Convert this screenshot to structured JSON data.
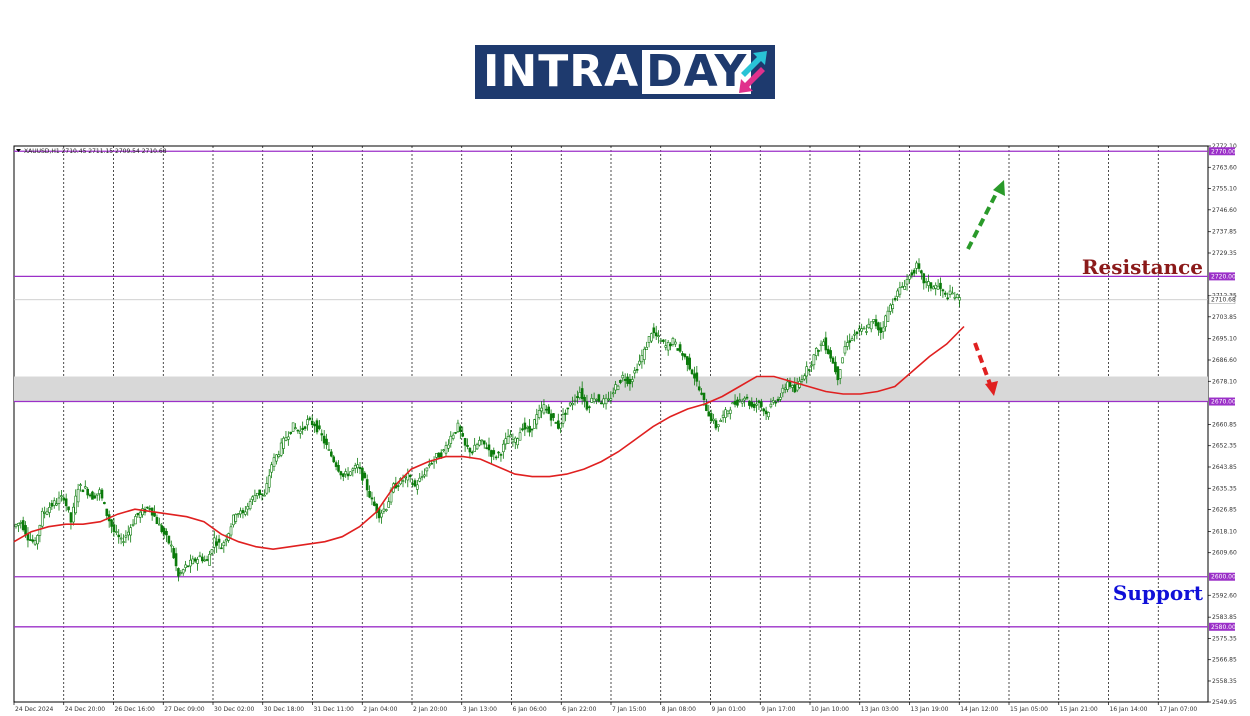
{
  "logo": {
    "text_main": "INTRA",
    "text_box": "DAY",
    "icon": "up-down-arrows-icon",
    "colors": {
      "background": "#1e3a6e",
      "arrow_up": "#29c4d6",
      "arrow_down": "#e0318c"
    }
  },
  "chart_data": {
    "type": "candlestick",
    "symbol_info": "XAUUSD,H1  2710.45 2711.15 2709.54 2710.68",
    "ylim": [
      2549.95,
      2772.1
    ],
    "y_ticks": [
      2772.1,
      2763.6,
      2755.1,
      2746.6,
      2737.85,
      2729.35,
      2712.35,
      2703.85,
      2695.1,
      2686.6,
      2678.1,
      2660.85,
      2652.35,
      2643.85,
      2635.35,
      2626.85,
      2618.1,
      2609.6,
      2592.6,
      2583.85,
      2575.35,
      2566.85,
      2558.35,
      2549.95
    ],
    "x_ticks": [
      "24 Dec 2024",
      "24 Dec 20:00",
      "26 Dec 16:00",
      "27 Dec 09:00",
      "30 Dec 02:00",
      "30 Dec 18:00",
      "31 Dec 11:00",
      "2 Jan 04:00",
      "2 Jan 20:00",
      "3 Jan 13:00",
      "6 Jan 06:00",
      "6 Jan 22:00",
      "7 Jan 15:00",
      "8 Jan 08:00",
      "9 Jan 01:00",
      "9 Jan 17:00",
      "10 Jan 10:00",
      "13 Jan 03:00",
      "13 Jan 19:00",
      "14 Jan 12:00",
      "15 Jan 05:00",
      "15 Jan 21:00",
      "16 Jan 14:00",
      "17 Jan 07:00"
    ],
    "levels": [
      {
        "value": 2770.0,
        "label": "2770.00"
      },
      {
        "value": 2720.0,
        "label": "2720.00"
      },
      {
        "value": 2670.0,
        "label": "2670.00"
      },
      {
        "value": 2600.0,
        "label": "2600.00"
      },
      {
        "value": 2580.0,
        "label": "2580.00"
      }
    ],
    "current_price": {
      "value": 2710.68,
      "label": "2710.68"
    },
    "zone": {
      "from": 2670.0,
      "to": 2680.0
    },
    "annotations": {
      "resistance": "Resistance",
      "support": "Support"
    },
    "path_points": [
      2620,
      2622,
      2616,
      2613,
      2625,
      2628,
      2630,
      2632,
      2622,
      2636,
      2635,
      2632,
      2634,
      2625,
      2618,
      2614,
      2618,
      2624,
      2626,
      2628,
      2622,
      2617,
      2612,
      2600,
      2604,
      2606,
      2608,
      2606,
      2615,
      2612,
      2618,
      2626,
      2625,
      2630,
      2634,
      2632,
      2645,
      2650,
      2656,
      2660,
      2658,
      2662,
      2661,
      2656,
      2650,
      2645,
      2640,
      2642,
      2644,
      2638,
      2630,
      2625,
      2628,
      2636,
      2638,
      2640,
      2636,
      2640,
      2645,
      2648,
      2650,
      2656,
      2660,
      2652,
      2650,
      2654,
      2652,
      2648,
      2650,
      2656,
      2654,
      2660,
      2658,
      2664,
      2668,
      2664,
      2660,
      2666,
      2670,
      2674,
      2668,
      2672,
      2670,
      2670,
      2676,
      2680,
      2678,
      2684,
      2690,
      2698,
      2695,
      2692,
      2694,
      2690,
      2686,
      2680,
      2672,
      2665,
      2660,
      2664,
      2668,
      2670,
      2672,
      2668,
      2670,
      2665,
      2670,
      2672,
      2678,
      2674,
      2680,
      2684,
      2690,
      2694,
      2688,
      2680,
      2692,
      2696,
      2698,
      2699,
      2702,
      2698,
      2706,
      2712,
      2716,
      2720,
      2724,
      2718,
      2716,
      2716,
      2712,
      2713,
      2710.68
    ],
    "ma_points": [
      2614,
      2618,
      2620,
      2621,
      2621,
      2622,
      2625,
      2627,
      2626,
      2625,
      2624,
      2622,
      2617,
      2614,
      2612,
      2611,
      2612,
      2613,
      2614,
      2616,
      2620,
      2626,
      2636,
      2643,
      2646,
      2648,
      2648,
      2647,
      2644,
      2641,
      2640,
      2640,
      2641,
      2643,
      2646,
      2650,
      2655,
      2660,
      2664,
      2667,
      2669,
      2672,
      2676,
      2680,
      2680,
      2678,
      2676,
      2674,
      2673,
      2673,
      2674,
      2676,
      2682,
      2688,
      2693,
      2700
    ]
  },
  "colors": {
    "level_line": "#9b30c8",
    "ma": "#e02020",
    "candle": "#0a7a0a",
    "zone": "#d8d8d8",
    "arrow_up": "#2a9a2a",
    "arrow_down": "#e02020",
    "resistance": "#8b1a1a",
    "support": "#1010d8"
  }
}
